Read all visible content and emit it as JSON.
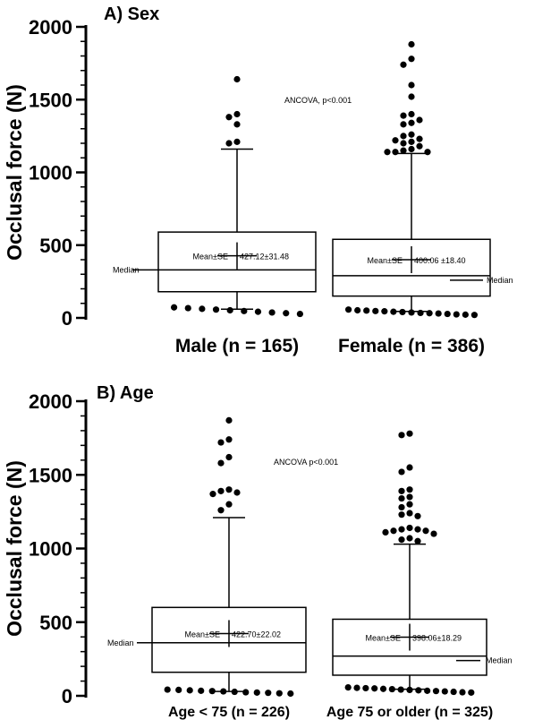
{
  "chart_data": [
    {
      "type": "box",
      "title": "A) Sex",
      "ylabel": "Occlusal force (N)",
      "ylim": [
        0,
        2000
      ],
      "yticks": [
        "0",
        "500",
        "1000",
        "1500",
        "2000"
      ],
      "annotation": "ANCOVA, p<0.001",
      "categories": [
        "Male (n = 165)",
        "Female (n = 386)"
      ],
      "groups": [
        {
          "label": "Male (n = 165)",
          "q1": 180,
          "median": 330,
          "q3": 590,
          "whisker_low": 60,
          "whisker_high": 1160,
          "mean": 427.12,
          "mean_label": "Mean±SE",
          "mean_value_label": "427.12±31.48",
          "median_label": "Median",
          "median_label_side": "left",
          "outliers_high": [
            1400,
            1380,
            1330,
            1210,
            1200,
            1640
          ],
          "outliers_low": [
            60,
            55,
            50,
            45,
            40,
            35,
            30,
            25,
            20,
            15
          ]
        },
        {
          "label": "Female (n = 386)",
          "q1": 150,
          "median": 290,
          "q3": 540,
          "whisker_low": 45,
          "whisker_high": 1130,
          "mean": 400.06,
          "mean_label": "Mean±SE",
          "mean_value_label": "400.06 ±18.40",
          "median_label": "Median",
          "median_label_side": "right",
          "outliers_high": [
            1880,
            1780,
            1740,
            1600,
            1520,
            1400,
            1390,
            1360,
            1340,
            1330,
            1260,
            1250,
            1230,
            1220,
            1210,
            1200,
            1180,
            1160,
            1150,
            1140,
            1140,
            1140
          ],
          "outliers_low": [
            45,
            40,
            38,
            35,
            33,
            30,
            28,
            25,
            22,
            20,
            18,
            15,
            12,
            10,
            8
          ]
        }
      ]
    },
    {
      "type": "box",
      "title": "B) Age",
      "ylabel": "Occlusal force (N)",
      "ylim": [
        0,
        2000
      ],
      "yticks": [
        "0",
        "500",
        "1000",
        "1500",
        "2000"
      ],
      "annotation": "ANCOVA p<0.001",
      "categories": [
        "Age < 75 (n = 226)",
        "Age 75 or older (n = 325)"
      ],
      "groups": [
        {
          "label": "Age < 75 (n = 226)",
          "q1": 160,
          "median": 360,
          "q3": 600,
          "whisker_low": 30,
          "whisker_high": 1210,
          "mean": 422.7,
          "mean_label": "Mean±SE",
          "mean_value_label": "422.70±22.02",
          "median_label": "Median",
          "median_label_side": "left",
          "outliers_high": [
            1870,
            1740,
            1720,
            1620,
            1580,
            1400,
            1390,
            1380,
            1370,
            1300,
            1260
          ],
          "outliers_low": [
            30,
            28,
            25,
            22,
            20,
            18,
            15,
            12,
            10,
            8,
            5,
            3
          ]
        },
        {
          "label": "Age 75 or older (n = 325)",
          "q1": 140,
          "median": 270,
          "q3": 520,
          "whisker_low": 45,
          "whisker_high": 1030,
          "mean": 398.06,
          "mean_label": "Mean±SE",
          "mean_value_label": "398.06±18.29",
          "median_label": "Median",
          "median_label_side": "right",
          "outliers_high": [
            1780,
            1770,
            1550,
            1520,
            1400,
            1390,
            1350,
            1340,
            1300,
            1280,
            1240,
            1230,
            1220,
            1140,
            1130,
            1130,
            1120,
            1120,
            1110,
            1100,
            1070,
            1060,
            1050
          ],
          "outliers_low": [
            45,
            42,
            40,
            38,
            35,
            33,
            30,
            28,
            25,
            22,
            20,
            18,
            15,
            12,
            10
          ]
        }
      ]
    }
  ]
}
